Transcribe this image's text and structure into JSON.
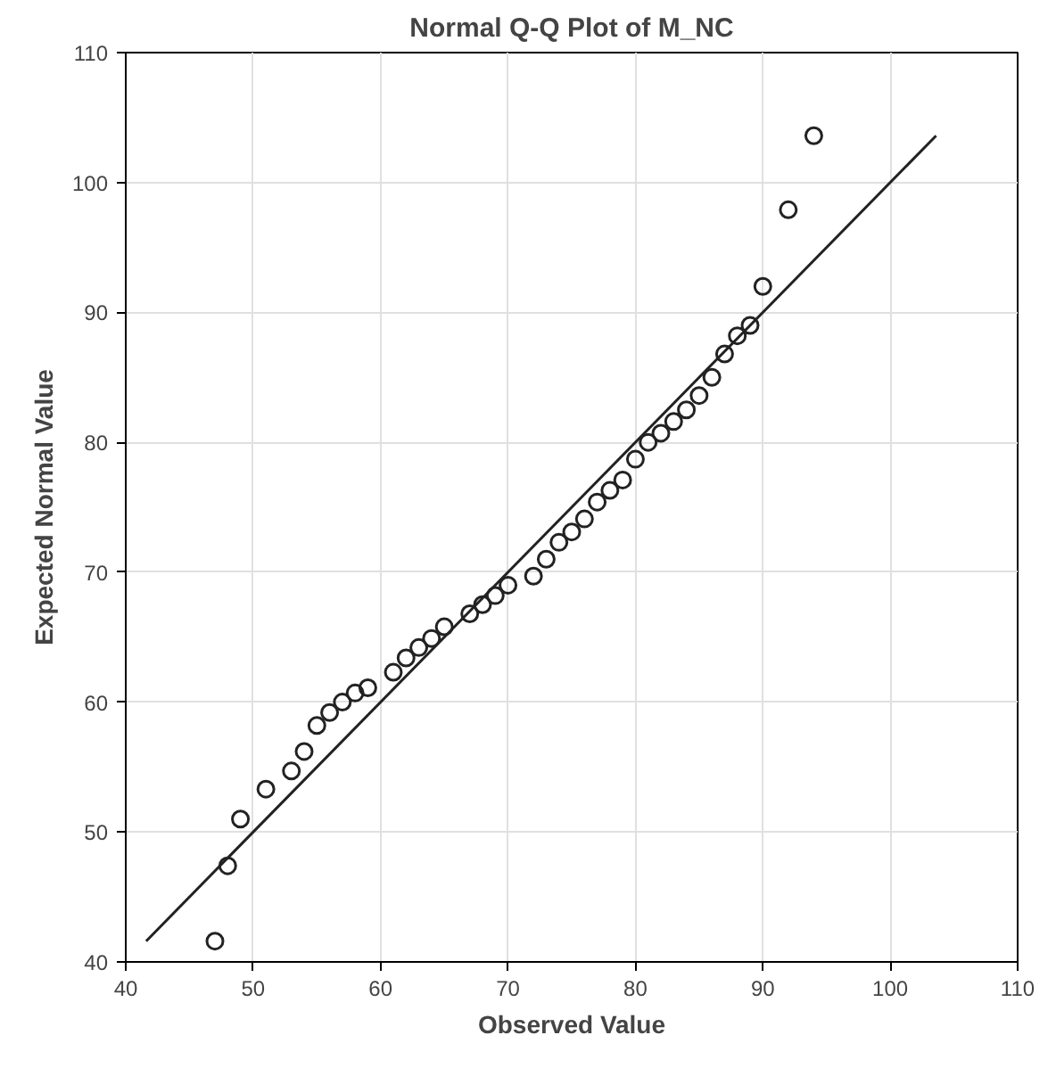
{
  "chart_data": {
    "type": "scatter",
    "title": "Normal Q-Q Plot of M_NC",
    "xlabel": "Observed Value",
    "ylabel": "Expected Normal Value",
    "xlim": [
      40,
      110
    ],
    "ylim": [
      40,
      110
    ],
    "xticks": [
      40,
      50,
      60,
      70,
      80,
      90,
      100,
      110
    ],
    "yticks": [
      40,
      50,
      60,
      70,
      80,
      90,
      100,
      110
    ],
    "grid": true,
    "series": [
      {
        "marker": "circle",
        "color": "#222222",
        "x": [
          47,
          48,
          49,
          51,
          53,
          54,
          55,
          56,
          57,
          58,
          59,
          61,
          62,
          63,
          64,
          65,
          67,
          68,
          69,
          70,
          72,
          73,
          74,
          75,
          76,
          77,
          78,
          79,
          80,
          81,
          82,
          83,
          84,
          85,
          86,
          87,
          88,
          89,
          90,
          92,
          94
        ],
        "values": [
          41.6,
          47.4,
          51,
          53.3,
          54.7,
          56.2,
          58.2,
          59.2,
          60,
          60.7,
          61.1,
          62.3,
          63.4,
          64.2,
          64.9,
          65.8,
          66.8,
          67.5,
          68.2,
          69,
          69.7,
          71,
          72.3,
          73.1,
          74.1,
          75.4,
          76.3,
          77.1,
          78.7,
          80,
          80.7,
          81.6,
          82.5,
          83.6,
          85,
          86.8,
          88.2,
          89,
          92,
          97.9,
          103.6
        ]
      },
      {
        "type": "line",
        "marker": "none",
        "color": "#222222",
        "x": [
          41.6,
          103.6
        ],
        "values": [
          41.6,
          103.6
        ]
      }
    ]
  }
}
